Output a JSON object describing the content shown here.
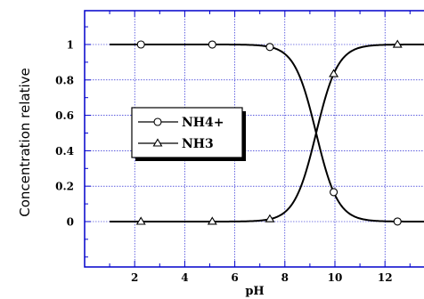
{
  "chart_data": {
    "type": "line",
    "title": "",
    "xlabel": "pH",
    "ylabel": "Concentration relative",
    "xlim": [
      0,
      14
    ],
    "ylim": [
      -0.25,
      1.25
    ],
    "x_ticks": [
      2,
      4,
      6,
      8,
      10,
      12
    ],
    "x_tick_labels": [
      "2",
      "4",
      "6",
      "8",
      "10",
      "12"
    ],
    "y_ticks": [
      0,
      0.2,
      0.4,
      0.6,
      0.8,
      1
    ],
    "y_tick_labels": [
      "0",
      "0.2",
      "0.4",
      "0.6",
      "0.8",
      "1"
    ],
    "grid": true,
    "legend_position": "center-left",
    "pKa": 9.25,
    "curve_x_range": [
      1,
      14
    ],
    "series": [
      {
        "name": "NH4+",
        "marker": "circle",
        "x": [
          1,
          2.25,
          5.1,
          7.4,
          9.25,
          9.95,
          12.5,
          14
        ],
        "values": [
          1,
          1,
          1,
          0.99,
          0.5,
          0.17,
          0.0006,
          0
        ]
      },
      {
        "name": "NH3",
        "marker": "triangle",
        "x": [
          1,
          2.25,
          5.1,
          7.4,
          9.25,
          9.95,
          12.5,
          14
        ],
        "values": [
          0,
          0,
          0,
          0.01,
          0.5,
          0.83,
          0.9994,
          1
        ]
      }
    ],
    "marker_x": [
      2.25,
      5.1,
      7.4,
      9.95,
      12.5
    ],
    "colors": {
      "frame": "#0000cc",
      "grid": "#0000cc",
      "curve": "#000000"
    }
  }
}
